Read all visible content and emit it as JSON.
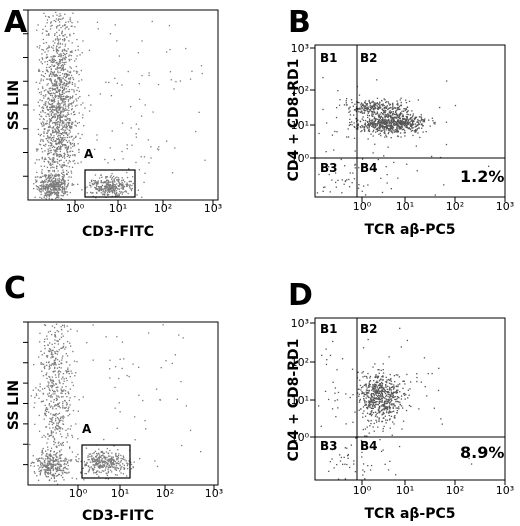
{
  "panels": [
    {
      "letter": "A",
      "x_label": "CD3-FITC",
      "y_label": "SS LIN",
      "x_ticks": [
        "10⁰",
        "10¹",
        "10²",
        "10³"
      ],
      "gate_label": "A"
    },
    {
      "letter": "B",
      "x_label": "TCR aβ-PC5",
      "y_label": "CD4 + CD8-RD1",
      "x_ticks": [
        "10⁰",
        "10¹",
        "10²",
        "10³"
      ],
      "y_ticks": [
        "10⁰",
        "10¹",
        "10²",
        "10³"
      ],
      "quadrants": [
        "B1",
        "B2",
        "B3",
        "B4"
      ],
      "percent": "1.2%"
    },
    {
      "letter": "C",
      "x_label": "CD3-FITC",
      "y_label": "SS LIN",
      "x_ticks": [
        "10⁰",
        "10¹",
        "10²",
        "10³"
      ],
      "gate_label": "A"
    },
    {
      "letter": "D",
      "x_label": "TCR aβ-PC5",
      "y_label": "CD4 + CD8-RD1",
      "x_ticks": [
        "10⁰",
        "10¹",
        "10²",
        "10³"
      ],
      "y_ticks": [
        "10⁰",
        "10¹",
        "10²",
        "10³"
      ],
      "quadrants": [
        "B1",
        "B2",
        "B3",
        "B4"
      ],
      "percent": "8.9%"
    }
  ]
}
